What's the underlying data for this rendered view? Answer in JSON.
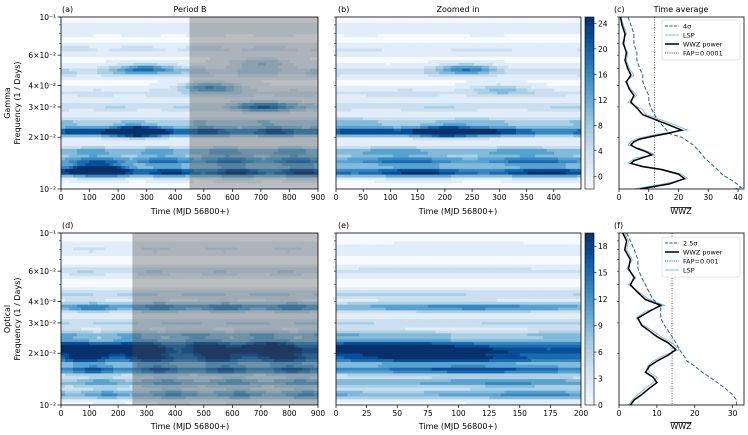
{
  "chart_data": [
    {
      "id": "a",
      "type": "heatmap",
      "panel_label": "(a)",
      "title": "Period B",
      "xlabel": "Time (MJD 56800+)",
      "ylabel_lines": [
        "Gamma",
        "Frequency (1 / Days)"
      ],
      "xlim": [
        0,
        900
      ],
      "ylim": [
        0.01,
        0.1
      ],
      "yscale": "log",
      "xticks": [
        0,
        100,
        200,
        300,
        400,
        500,
        600,
        700,
        800,
        900
      ],
      "ytick_labels": [
        "10⁻¹",
        "6×10⁻²",
        "4×10⁻²",
        "3×10⁻²",
        "2×10⁻²",
        "10⁻²"
      ],
      "ytick_values": [
        0.1,
        0.06,
        0.04,
        0.03,
        0.02,
        0.01
      ],
      "shaded_region": [
        450,
        900
      ],
      "bands": [
        [
          0.0125,
          1.0
        ],
        [
          0.0145,
          0.75
        ],
        [
          0.0165,
          0.55
        ],
        [
          0.0215,
          0.9
        ],
        [
          0.0245,
          0.35
        ],
        [
          0.03,
          0.25
        ],
        [
          0.036,
          0.2
        ],
        [
          0.048,
          0.3
        ],
        [
          0.065,
          0.18
        ],
        [
          0.085,
          0.12
        ]
      ],
      "blobs": [
        [
          260,
          0.0215,
          0.95
        ],
        [
          720,
          0.03,
          0.6
        ],
        [
          520,
          0.039,
          0.55
        ],
        [
          300,
          0.05,
          0.55
        ],
        [
          700,
          0.054,
          0.35
        ],
        [
          120,
          0.013,
          0.8
        ]
      ]
    },
    {
      "id": "b",
      "type": "heatmap",
      "panel_label": "(b)",
      "title": "Zoomed in",
      "xlabel": "Time (MJD 56800+)",
      "xlim": [
        0,
        450
      ],
      "ylim": [
        0.01,
        0.1
      ],
      "yscale": "log",
      "xticks": [
        0,
        50,
        100,
        150,
        200,
        250,
        300,
        350,
        400
      ],
      "bands": [
        [
          0.0125,
          1.0
        ],
        [
          0.0145,
          0.75
        ],
        [
          0.0165,
          0.55
        ],
        [
          0.0215,
          0.95
        ],
        [
          0.0245,
          0.4
        ],
        [
          0.03,
          0.25
        ],
        [
          0.036,
          0.2
        ],
        [
          0.048,
          0.25
        ],
        [
          0.065,
          0.15
        ],
        [
          0.085,
          0.1
        ]
      ],
      "blobs": [
        [
          240,
          0.05,
          0.5
        ],
        [
          300,
          0.038,
          0.3
        ],
        [
          200,
          0.0215,
          0.9
        ]
      ],
      "colorbar": {
        "min": -2,
        "max": 25,
        "ticks": [
          0,
          4,
          8,
          12,
          16,
          20,
          24
        ]
      }
    },
    {
      "id": "c",
      "type": "line",
      "panel_label": "(c)",
      "title": "Time average",
      "xlabel": "WWZ",
      "xlim": [
        0,
        42
      ],
      "xticks": [
        0,
        10,
        20,
        30,
        40
      ],
      "ylim": [
        0.01,
        0.1
      ],
      "yscale": "log",
      "legend": [
        "4σ",
        "LSP",
        "WWZ power",
        "FAP=0.0001"
      ],
      "fap_x": 12,
      "series": [
        {
          "name": "WWZ power",
          "color": "#000000",
          "x": [
            0.5,
            1,
            2,
            1.5,
            2.5,
            2,
            3,
            4,
            2.5,
            3.5,
            5,
            4,
            6.5,
            8,
            13,
            17,
            21,
            16,
            11,
            7,
            5,
            4,
            6,
            9,
            11,
            8,
            5,
            4,
            8,
            14,
            20,
            22,
            17,
            7
          ],
          "y": [
            0.1,
            0.09,
            0.08,
            0.07,
            0.062,
            0.056,
            0.05,
            0.046,
            0.042,
            0.038,
            0.035,
            0.032,
            0.029,
            0.027,
            0.025,
            0.0235,
            0.022,
            0.021,
            0.0202,
            0.0195,
            0.0188,
            0.018,
            0.0172,
            0.0165,
            0.0158,
            0.0152,
            0.0146,
            0.0141,
            0.0135,
            0.013,
            0.0122,
            0.0115,
            0.0107,
            0.01
          ]
        },
        {
          "name": "LSP",
          "color": "#6aaed6",
          "x": [
            0.5,
            1.5,
            2.5,
            1,
            3,
            2.5,
            3.5,
            5,
            2,
            4,
            6,
            3,
            8,
            9,
            15,
            19,
            23,
            14,
            9,
            5.5,
            4,
            3,
            7,
            10,
            12,
            6,
            4,
            3,
            9,
            15,
            21,
            23,
            15,
            5
          ],
          "y": [
            0.1,
            0.09,
            0.08,
            0.07,
            0.062,
            0.056,
            0.05,
            0.046,
            0.042,
            0.038,
            0.035,
            0.032,
            0.029,
            0.027,
            0.025,
            0.0235,
            0.022,
            0.021,
            0.0202,
            0.0195,
            0.0188,
            0.018,
            0.0172,
            0.0165,
            0.0158,
            0.0152,
            0.0146,
            0.0141,
            0.0135,
            0.013,
            0.0122,
            0.0115,
            0.0107,
            0.01
          ]
        },
        {
          "name": "4σ",
          "color": "#1f5fa0",
          "dashed": true,
          "x": [
            3,
            4,
            5,
            5,
            6,
            6,
            7,
            8,
            8,
            9,
            10,
            10,
            11,
            12,
            13,
            15,
            17,
            21,
            23,
            25,
            27,
            29,
            31,
            33,
            35,
            38,
            40,
            41,
            39
          ],
          "y": [
            0.1,
            0.09,
            0.08,
            0.07,
            0.062,
            0.056,
            0.05,
            0.046,
            0.042,
            0.038,
            0.035,
            0.032,
            0.029,
            0.027,
            0.025,
            0.023,
            0.021,
            0.02,
            0.019,
            0.018,
            0.0165,
            0.015,
            0.014,
            0.013,
            0.012,
            0.0112,
            0.0106,
            0.0102,
            0.01
          ]
        }
      ]
    },
    {
      "id": "d",
      "type": "heatmap",
      "panel_label": "(d)",
      "xlabel": "Time (MJD 56800+)",
      "ylabel_lines": [
        "Optical",
        "Frequency (1 / Days)"
      ],
      "xlim": [
        0,
        900
      ],
      "ylim": [
        0.01,
        0.1
      ],
      "yscale": "log",
      "xticks": [
        0,
        100,
        200,
        300,
        400,
        500,
        600,
        700,
        800,
        900
      ],
      "ytick_labels": [
        "10⁻¹",
        "6×10⁻²",
        "4×10⁻²",
        "3×10⁻²",
        "2×10⁻²",
        "10⁻²"
      ],
      "ytick_values": [
        0.1,
        0.06,
        0.04,
        0.03,
        0.02,
        0.01
      ],
      "shaded_region": [
        250,
        900
      ],
      "bands": [
        [
          0.0115,
          0.6
        ],
        [
          0.0135,
          0.55
        ],
        [
          0.016,
          0.85
        ],
        [
          0.0185,
          0.9
        ],
        [
          0.0205,
          0.95
        ],
        [
          0.0225,
          0.8
        ],
        [
          0.0255,
          0.5
        ],
        [
          0.03,
          0.3
        ],
        [
          0.037,
          0.7
        ],
        [
          0.044,
          0.3
        ],
        [
          0.06,
          0.25
        ],
        [
          0.08,
          0.15
        ]
      ],
      "blobs": [
        [
          180,
          0.021,
          0.5
        ],
        [
          700,
          0.021,
          0.4
        ]
      ]
    },
    {
      "id": "e",
      "type": "heatmap",
      "panel_label": "(e)",
      "xlabel": "Time (MJD 56800+)",
      "xlim": [
        0,
        200
      ],
      "ylim": [
        0.01,
        0.1
      ],
      "yscale": "log",
      "xticks": [
        0,
        25,
        50,
        75,
        100,
        125,
        150,
        175,
        200
      ],
      "bands": [
        [
          0.0115,
          0.6
        ],
        [
          0.0135,
          0.6
        ],
        [
          0.016,
          0.85
        ],
        [
          0.0185,
          0.9
        ],
        [
          0.0205,
          1.0
        ],
        [
          0.0225,
          0.8
        ],
        [
          0.0255,
          0.45
        ],
        [
          0.03,
          0.3
        ],
        [
          0.037,
          0.65
        ],
        [
          0.044,
          0.3
        ],
        [
          0.06,
          0.2
        ],
        [
          0.08,
          0.12
        ]
      ],
      "blobs": [],
      "colorbar": {
        "min": 0,
        "max": 19.5,
        "ticks": [
          0,
          3,
          6,
          9,
          12,
          15,
          18
        ]
      }
    },
    {
      "id": "f",
      "type": "line",
      "panel_label": "(f)",
      "xlabel": "WWZ",
      "xlim": [
        0,
        33
      ],
      "xticks": [
        0,
        10,
        20,
        30
      ],
      "ylim": [
        0.01,
        0.1
      ],
      "yscale": "log",
      "legend": [
        "2.5σ",
        "WWZ power",
        "FAP=0.001",
        "LSP"
      ],
      "fap_x": 14,
      "series": [
        {
          "name": "WWZ power",
          "color": "#000000",
          "x": [
            1,
            2,
            1.5,
            3,
            2.5,
            4,
            3,
            5,
            7,
            11,
            8,
            5,
            6,
            8,
            10,
            13,
            15,
            13,
            10,
            8,
            7,
            9,
            10,
            8,
            6,
            4,
            3
          ],
          "y": [
            0.1,
            0.09,
            0.08,
            0.07,
            0.062,
            0.055,
            0.05,
            0.045,
            0.041,
            0.038,
            0.035,
            0.032,
            0.029,
            0.027,
            0.025,
            0.023,
            0.021,
            0.0195,
            0.018,
            0.0168,
            0.0155,
            0.0145,
            0.0135,
            0.0125,
            0.0115,
            0.0107,
            0.01
          ]
        },
        {
          "name": "LSP",
          "color": "#6aaed6",
          "x": [
            1.5,
            2.5,
            2,
            3.5,
            2,
            4.5,
            2.5,
            5.5,
            8,
            12,
            7,
            4.5,
            6.5,
            9,
            11,
            14,
            16,
            12,
            9,
            7.5,
            8,
            10,
            9,
            7,
            5,
            3.5,
            2.5
          ],
          "y": [
            0.1,
            0.09,
            0.08,
            0.07,
            0.062,
            0.055,
            0.05,
            0.045,
            0.041,
            0.038,
            0.035,
            0.032,
            0.029,
            0.027,
            0.025,
            0.023,
            0.021,
            0.0195,
            0.018,
            0.0168,
            0.0155,
            0.0145,
            0.0135,
            0.0125,
            0.0115,
            0.0107,
            0.01
          ]
        },
        {
          "name": "2.5σ",
          "color": "#1f5fa0",
          "dashed": true,
          "x": [
            2,
            3,
            4,
            5,
            5,
            6,
            7,
            8,
            9,
            11,
            11,
            11,
            12,
            13,
            14,
            15,
            16,
            17,
            18,
            20,
            22,
            24,
            26,
            28,
            30,
            31,
            31
          ],
          "y": [
            0.1,
            0.09,
            0.08,
            0.07,
            0.062,
            0.055,
            0.05,
            0.045,
            0.041,
            0.038,
            0.035,
            0.032,
            0.029,
            0.027,
            0.025,
            0.023,
            0.021,
            0.0195,
            0.018,
            0.0168,
            0.0155,
            0.0145,
            0.0135,
            0.0125,
            0.0115,
            0.0107,
            0.01
          ]
        }
      ]
    }
  ]
}
